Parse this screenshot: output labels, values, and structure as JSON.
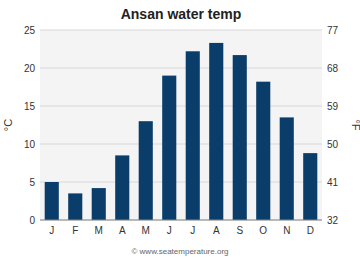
{
  "chart_data": {
    "type": "bar",
    "title": "Ansan water temp",
    "categories": [
      "J",
      "F",
      "M",
      "A",
      "M",
      "J",
      "J",
      "A",
      "S",
      "O",
      "N",
      "D"
    ],
    "values": [
      5.0,
      3.5,
      4.2,
      8.5,
      13.0,
      19.0,
      22.2,
      23.3,
      21.7,
      18.2,
      13.5,
      8.8
    ],
    "color": "#0b3d6b",
    "y_label": "°C",
    "y2_label": "°F",
    "ylim": [
      0,
      25
    ],
    "yticks": [
      0,
      5,
      10,
      15,
      20,
      25
    ],
    "y2lim": [
      32,
      77
    ],
    "y2ticks": [
      32,
      41,
      50,
      59,
      68,
      77
    ],
    "grid": true,
    "annotations": [
      "© www.seatemperature.org"
    ]
  }
}
